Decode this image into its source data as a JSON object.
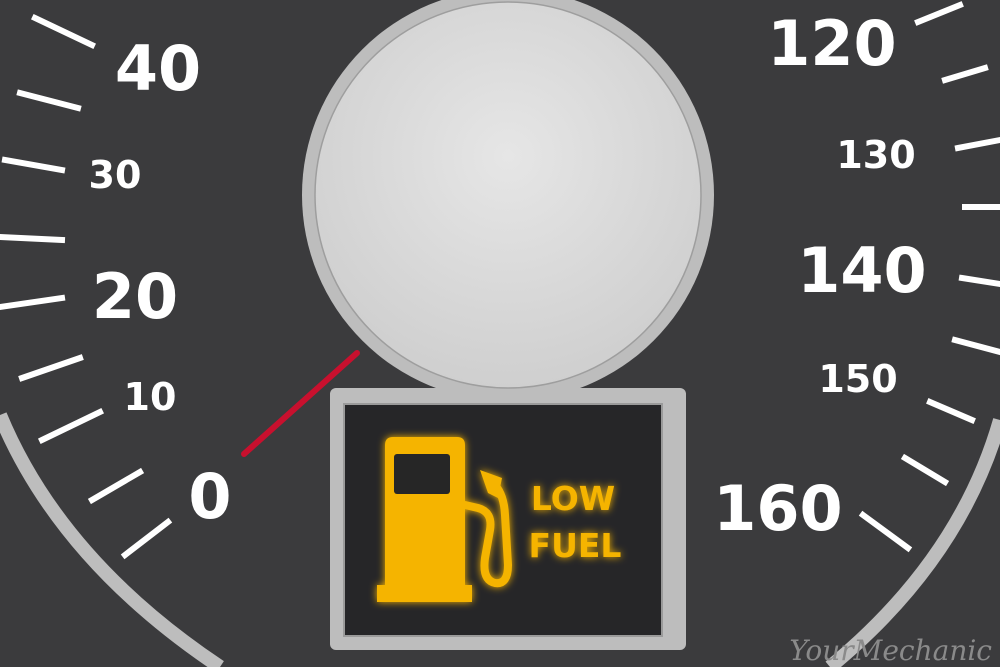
{
  "left_gauge": {
    "major_labels": [
      "40",
      "20",
      "0"
    ],
    "minor_labels": [
      "30",
      "10"
    ]
  },
  "right_gauge": {
    "major_labels": [
      "120",
      "140",
      "160"
    ],
    "minor_labels": [
      "130",
      "150"
    ]
  },
  "warning": {
    "line1": "LOW",
    "line2": "FUEL",
    "icon": "fuel-pump-icon",
    "color": "#f5b400"
  },
  "needle": {
    "color": "#c8102e",
    "pointing_at": "0"
  },
  "watermark": "YourMechanic",
  "colors": {
    "dial": "#3a3a3c",
    "bezel": "#bdbdbd",
    "center_cap": "#d9d9d9"
  }
}
